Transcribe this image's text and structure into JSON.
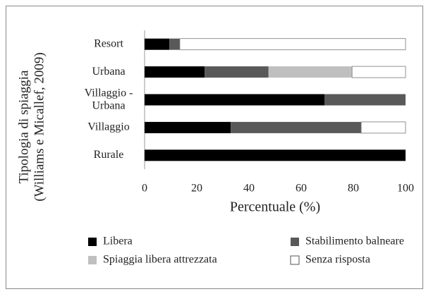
{
  "chart_data": {
    "type": "stacked_bar_horizontal",
    "categories": [
      "Resort",
      "Urbana",
      "Villaggio -\nUrbana",
      "Villaggio",
      "Rurale"
    ],
    "series": [
      {
        "name": "Libera",
        "color": "#000000",
        "values": [
          9.5,
          23,
          69,
          33,
          100
        ]
      },
      {
        "name": "Stabilimento balneare",
        "color": "#595959",
        "values": [
          4,
          24.5,
          31,
          50,
          0
        ]
      },
      {
        "name": "Spiaggia libera attrezzata",
        "color": "#bfbfbf",
        "values": [
          0,
          32,
          0,
          0,
          0
        ]
      },
      {
        "name": "Senza risposta",
        "color": "#ffffff",
        "values": [
          86.5,
          20.5,
          0,
          17,
          0
        ]
      }
    ],
    "xlim": [
      0,
      100
    ],
    "xticks": [
      0,
      20,
      40,
      60,
      80,
      100
    ],
    "x_label": "Percentuale (%)",
    "y_label": [
      "Tipologia di spiaggia",
      "(Williams e Micallef, 2009)"
    ],
    "legend": "bottom"
  }
}
